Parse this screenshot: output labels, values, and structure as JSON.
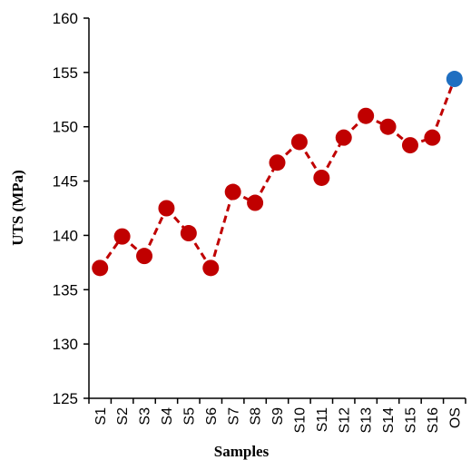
{
  "chart_data": {
    "type": "line",
    "title": "",
    "xlabel": "Samples",
    "ylabel": "UTS (MPa)",
    "categories": [
      "S1",
      "S2",
      "S3",
      "S4",
      "S5",
      "S6",
      "S7",
      "S8",
      "S9",
      "S10",
      "S11",
      "S12",
      "S13",
      "S14",
      "S15",
      "S16",
      "OS"
    ],
    "series": [
      {
        "values": [
          137.0,
          139.9,
          138.1,
          142.5,
          140.2,
          137.0,
          144.0,
          143.0,
          146.7,
          148.6,
          145.3,
          149.0,
          151.0,
          150.0,
          148.3,
          149.0,
          154.4
        ]
      }
    ],
    "ylim": [
      125,
      160
    ],
    "yticks": [
      125,
      130,
      135,
      140,
      145,
      150,
      155,
      160
    ],
    "grid": false,
    "legend": "none",
    "colors": {
      "marker": "#c00000",
      "line": "#c00000",
      "highlight_marker": "#1f6fc1",
      "axis": "#000000"
    },
    "line_style": "dashed",
    "highlight_index": 16
  }
}
